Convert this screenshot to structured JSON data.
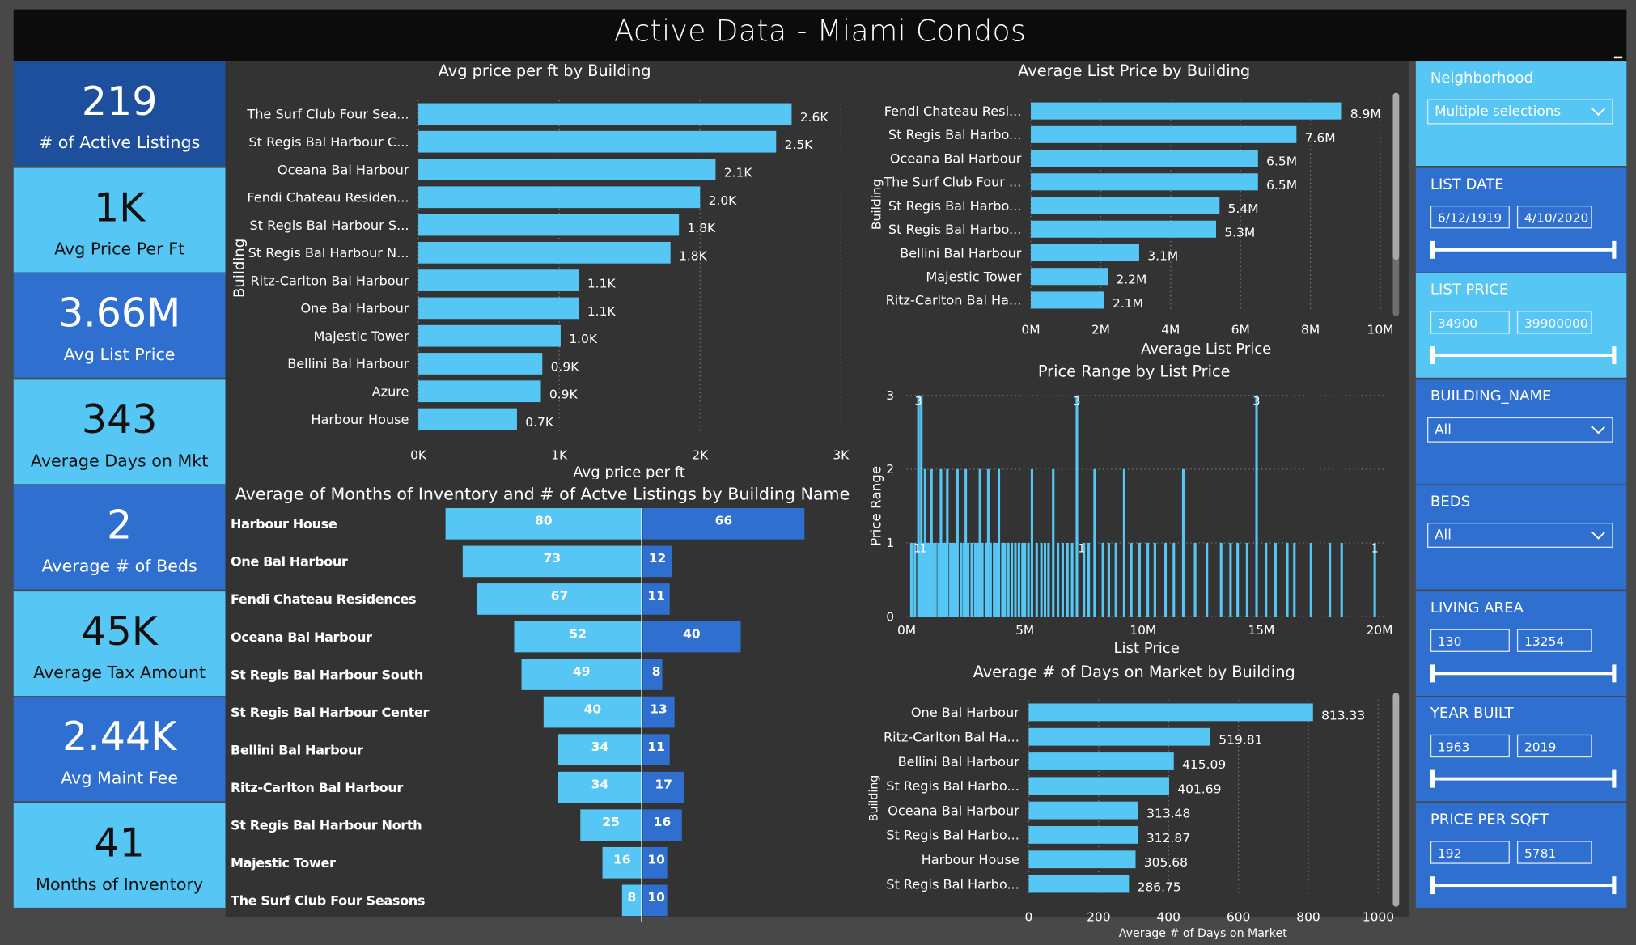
{
  "app": {
    "title": "Active Data - Miami Condos"
  },
  "kpis": [
    {
      "value": "219",
      "label": "# of Active Listings",
      "bg": "#1e4f9c"
    },
    {
      "value": "1K",
      "label": "Avg Price Per Ft",
      "bg": "#56c7f5"
    },
    {
      "value": "3.66M",
      "label": "Avg List Price",
      "bg": "#2e6fd0"
    },
    {
      "value": "343",
      "label": "Average Days on Mkt",
      "bg": "#56c7f5"
    },
    {
      "value": "2",
      "label": "Average # of Beds",
      "bg": "#2e6fd0"
    },
    {
      "value": "45K",
      "label": "Average Tax Amount",
      "bg": "#56c7f5"
    },
    {
      "value": "2.44K",
      "label": "Avg Maint Fee",
      "bg": "#2e6fd0"
    },
    {
      "value": "41",
      "label": "Months of Inventory",
      "bg": "#56c7f5"
    }
  ],
  "filters": [
    {
      "type": "dropdown",
      "label": "Neighborhood",
      "value": "Multiple selections",
      "bg": "#56c7f5"
    },
    {
      "type": "range",
      "label": "LIST DATE",
      "min": "6/12/1919",
      "max": "4/10/2020",
      "bg": "#2e6fd0"
    },
    {
      "type": "range",
      "label": "LIST PRICE",
      "min": "34900",
      "max": "39900000",
      "bg": "#56c7f5"
    },
    {
      "type": "dropdown",
      "label": "BUILDING_NAME",
      "value": "All",
      "bg": "#2e6fd0"
    },
    {
      "type": "dropdown",
      "label": "BEDS",
      "value": "All",
      "bg": "#2e6fd0"
    },
    {
      "type": "range",
      "label": "LIVING AREA",
      "min": "130",
      "max": "13254",
      "bg": "#2e6fd0"
    },
    {
      "type": "range",
      "label": "YEAR BUILT",
      "min": "1963",
      "max": "2019",
      "bg": "#2e6fd0"
    },
    {
      "type": "range",
      "label": "PRICE PER SQFT",
      "min": "192",
      "max": "5781",
      "bg": "#2e6fd0"
    }
  ],
  "colors": {
    "bar": "#56c7f5",
    "bar_dark": "#2e6fd0",
    "panel": "#333333",
    "header": "#0c0c0c",
    "text": "#ffffff"
  },
  "chart_data": [
    {
      "type": "bar",
      "orientation": "horizontal",
      "title": "Avg price per ft by Building",
      "xlabel": "Avg price per ft",
      "ylabel": "Building",
      "categories": [
        "The Surf Club Four Sea...",
        "St Regis Bal Harbour C...",
        "Oceana Bal Harbour",
        "Fendi Chateau Residen...",
        "St Regis Bal Harbour S...",
        "St Regis Bal Harbour N...",
        "Ritz-Carlton Bal Harbour",
        "One Bal Harbour",
        "Majestic Tower",
        "Bellini Bal Harbour",
        "Azure",
        "Harbour House"
      ],
      "values": [
        2650,
        2540,
        2110,
        2000,
        1850,
        1790,
        1140,
        1140,
        1010,
        880,
        870,
        700
      ],
      "labels": [
        "2.6K",
        "2.5K",
        "2.1K",
        "2.0K",
        "1.8K",
        "1.8K",
        "1.1K",
        "1.1K",
        "1.0K",
        "0.9K",
        "0.9K",
        "0.7K"
      ],
      "xlim": [
        0,
        3000
      ],
      "ticks": [
        0,
        1000,
        2000,
        3000
      ],
      "tick_labels": [
        "0K",
        "1K",
        "2K",
        "3K"
      ],
      "grid": true
    },
    {
      "type": "bar",
      "orientation": "horizontal",
      "title": "Average List Price by Building",
      "xlabel": "Average List Price",
      "ylabel": "Building",
      "categories": [
        "Fendi Chateau Resi...",
        "St Regis Bal Harbo...",
        "Oceana Bal Harbour",
        "The Surf Club Four ...",
        "St Regis Bal Harbo...",
        "St Regis Bal Harbo...",
        "Bellini Bal Harbour",
        "Majestic Tower",
        "Ritz-Carlton Bal Ha..."
      ],
      "values": [
        8.9,
        7.6,
        6.5,
        6.5,
        5.4,
        5.3,
        3.1,
        2.2,
        2.1
      ],
      "labels": [
        "8.9M",
        "7.6M",
        "6.5M",
        "6.5M",
        "5.4M",
        "5.3M",
        "3.1M",
        "2.2M",
        "2.1M"
      ],
      "xlim": [
        0,
        10
      ],
      "ticks": [
        0,
        2,
        4,
        6,
        8,
        10
      ],
      "tick_labels": [
        "0M",
        "2M",
        "4M",
        "6M",
        "8M",
        "10M"
      ],
      "grid": true
    },
    {
      "type": "bar",
      "title": "Price Range by List Price",
      "xlabel": "List Price",
      "ylabel": "Price Range",
      "x_ticks": [
        0,
        5,
        10,
        15,
        20
      ],
      "x_tick_labels": [
        "0M",
        "5M",
        "10M",
        "15M",
        "20M"
      ],
      "y_ticks": [
        0,
        1,
        2,
        3
      ],
      "y_tick_labels": [
        "0",
        "1",
        "2",
        "3"
      ],
      "xlim": [
        0,
        20.3
      ],
      "ylim": [
        0,
        3
      ],
      "bars_x": [
        0.2,
        0.35,
        0.5,
        0.55,
        0.62,
        0.7,
        0.78,
        0.85,
        0.95,
        1.05,
        1.12,
        1.22,
        1.35,
        1.45,
        1.55,
        1.62,
        1.72,
        1.85,
        1.95,
        2.05,
        2.15,
        2.3,
        2.42,
        2.5,
        2.6,
        2.75,
        2.9,
        3.0,
        3.1,
        3.2,
        3.35,
        3.45,
        3.55,
        3.7,
        3.8,
        3.9,
        4.05,
        4.15,
        4.3,
        4.45,
        4.6,
        4.75,
        4.9,
        5.0,
        5.15,
        5.3,
        5.5,
        5.7,
        5.85,
        6.0,
        6.2,
        6.4,
        6.6,
        6.8,
        7.0,
        7.2,
        7.5,
        7.7,
        7.95,
        8.3,
        8.55,
        8.85,
        9.2,
        9.5,
        9.85,
        10.2,
        10.5,
        10.95,
        11.3,
        11.7,
        12.2,
        12.7,
        13.3,
        13.7,
        14.0,
        14.4,
        14.8,
        15.2,
        15.6,
        16.1,
        16.4,
        17.1,
        17.9,
        18.4,
        19.8
      ],
      "bars_y": [
        1,
        1,
        3,
        1,
        3,
        1,
        2,
        1,
        1,
        2,
        1,
        1,
        1,
        2,
        1,
        1,
        2,
        1,
        1,
        1,
        2,
        1,
        1,
        2,
        1,
        1,
        1,
        1,
        2,
        1,
        1,
        2,
        1,
        1,
        1,
        2,
        1,
        1,
        1,
        1,
        1,
        1,
        1,
        1,
        1,
        2,
        1,
        1,
        1,
        1,
        2,
        1,
        1,
        1,
        1,
        3,
        1,
        1,
        2,
        1,
        1,
        1,
        2,
        1,
        1,
        1,
        1,
        1,
        1,
        2,
        1,
        1,
        1,
        1,
        1,
        1,
        3,
        1,
        1,
        1,
        1,
        1,
        1,
        1,
        1
      ],
      "annotations": [
        {
          "x": 0.45,
          "y": 1,
          "text": "1"
        },
        {
          "x": 0.7,
          "y": 1,
          "text": "1"
        },
        {
          "x": 0.5,
          "y": 3,
          "text": "3"
        },
        {
          "x": 7.2,
          "y": 3,
          "text": "3"
        },
        {
          "x": 7.4,
          "y": 1,
          "text": "1"
        },
        {
          "x": 14.8,
          "y": 3,
          "text": "3"
        },
        {
          "x": 19.8,
          "y": 1,
          "text": "1"
        }
      ],
      "grid": true
    },
    {
      "type": "bar",
      "orientation": "horizontal",
      "title": "Average # of Days on Market by Building",
      "xlabel": "Average # of Days on Market",
      "ylabel": "Building",
      "categories": [
        "One Bal Harbour",
        "Ritz-Carlton Bal Ha...",
        "Bellini Bal Harbour",
        "St Regis Bal Harbo...",
        "Oceana Bal Harbour",
        "St Regis Bal Harbo...",
        "Harbour House",
        "St Regis Bal Harbo..."
      ],
      "values": [
        813.33,
        519.81,
        415.09,
        401.69,
        313.48,
        312.87,
        305.68,
        286.75
      ],
      "labels": [
        "813.33",
        "519.81",
        "415.09",
        "401.69",
        "313.48",
        "312.87",
        "305.68",
        "286.75"
      ],
      "xlim": [
        0,
        1000
      ],
      "ticks": [
        0,
        200,
        400,
        600,
        800,
        1000
      ],
      "tick_labels": [
        "0",
        "200",
        "400",
        "600",
        "800",
        "1000"
      ],
      "grid": true
    },
    {
      "type": "bar",
      "subtype": "butterfly",
      "title": "Average of Months of Inventory and # of Actve Listings by Building Name",
      "categories": [
        "Harbour House",
        "One Bal Harbour",
        "Fendi Chateau Residences",
        "Oceana Bal Harbour",
        "St Regis Bal Harbour South",
        "St Regis Bal Harbour Center",
        "Bellini Bal Harbour",
        "Ritz-Carlton Bal Harbour",
        "St Regis Bal Harbour North",
        "Majestic Tower",
        "The Surf Club Four Seasons"
      ],
      "series": [
        {
          "values": [
            80,
            73,
            67,
            52,
            49,
            40,
            34,
            34,
            25,
            16,
            8
          ]
        },
        {
          "values": [
            66,
            12,
            11,
            40,
            8,
            13,
            11,
            17,
            16,
            10,
            10
          ]
        }
      ]
    }
  ]
}
